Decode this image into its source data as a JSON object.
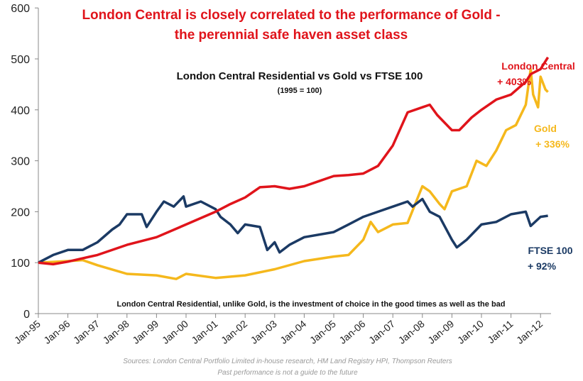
{
  "chart_data": {
    "type": "line",
    "title": "London Central is closely correlated to the performance of Gold -",
    "title_line2": "the perennial safe haven asset class",
    "subtitle": "London Central Residential vs Gold vs FTSE 100",
    "subtitle2": "(1995 = 100)",
    "annotation": "London Central Residential, unlike Gold, is the investment of choice in the good times as well as the bad",
    "source": "Sources: London Central Portfolio Limited in-house research, HM Land Registry HPI, Thompson Reuters",
    "disclaimer": "Past performance is not a guide to the future",
    "ylim": [
      0,
      600
    ],
    "yticks": [
      "0",
      "100",
      "200",
      "300",
      "400",
      "500",
      "600"
    ],
    "xticks": [
      "Jan-95",
      "Jan-96",
      "Jan-97",
      "Jan-98",
      "Jan-99",
      "Jan-00",
      "Jan-01",
      "Jan-02",
      "Jan-03",
      "Jan-04",
      "Jan-05",
      "Jan-06",
      "Jan-07",
      "Jan-08",
      "Jan-09",
      "Jan-10",
      "Jan-11",
      "Jan-12"
    ],
    "grid": false,
    "series": [
      {
        "name": "London Central",
        "label2": "+ 403%",
        "color": "#e0141b",
        "x": [
          "1995-01",
          "1995-07",
          "1996-01",
          "1997-01",
          "1998-01",
          "1999-01",
          "2000-01",
          "2001-01",
          "2001-07",
          "2002-01",
          "2002-07",
          "2003-01",
          "2003-07",
          "2004-01",
          "2004-07",
          "2005-01",
          "2005-07",
          "2006-01",
          "2006-07",
          "2007-01",
          "2007-07",
          "2008-01",
          "2008-04",
          "2008-07",
          "2009-01",
          "2009-04",
          "2009-09",
          "2010-01",
          "2010-07",
          "2011-01",
          "2011-07",
          "2011-09",
          "2012-01",
          "2012-04"
        ],
        "y": [
          100,
          97,
          102,
          115,
          135,
          150,
          175,
          200,
          215,
          228,
          248,
          250,
          245,
          250,
          260,
          270,
          272,
          275,
          290,
          330,
          395,
          405,
          410,
          390,
          360,
          360,
          385,
          400,
          420,
          430,
          455,
          470,
          480,
          503
        ]
      },
      {
        "name": "Gold",
        "label2": "+ 336%",
        "color": "#f5b81c",
        "x": [
          "1995-01",
          "1996-01",
          "1996-07",
          "1997-01",
          "1998-01",
          "1999-01",
          "1999-09",
          "2000-01",
          "2001-01",
          "2002-01",
          "2003-01",
          "2004-01",
          "2005-01",
          "2005-07",
          "2006-01",
          "2006-04",
          "2006-07",
          "2007-01",
          "2007-07",
          "2008-01",
          "2008-04",
          "2008-08",
          "2008-10",
          "2009-01",
          "2009-07",
          "2009-11",
          "2010-03",
          "2010-07",
          "2010-11",
          "2011-03",
          "2011-07",
          "2011-09",
          "2011-10",
          "2011-12",
          "2012-01",
          "2012-03",
          "2012-04"
        ],
        "y": [
          100,
          103,
          105,
          95,
          78,
          75,
          68,
          78,
          70,
          75,
          87,
          103,
          112,
          115,
          145,
          180,
          160,
          175,
          178,
          250,
          240,
          215,
          205,
          240,
          250,
          300,
          290,
          320,
          360,
          370,
          410,
          480,
          430,
          405,
          465,
          440,
          435
        ]
      },
      {
        "name": "FTSE 100",
        "label2": "+ 92%",
        "color": "#1b3a64",
        "x": [
          "1995-01",
          "1995-07",
          "1996-01",
          "1996-07",
          "1997-01",
          "1997-07",
          "1997-10",
          "1998-01",
          "1998-07",
          "1998-09",
          "1999-01",
          "1999-04",
          "1999-08",
          "1999-12",
          "2000-01",
          "2000-07",
          "2001-01",
          "2001-03",
          "2001-07",
          "2001-10",
          "2002-01",
          "2002-07",
          "2002-10",
          "2003-01",
          "2003-03",
          "2003-07",
          "2004-01",
          "2005-01",
          "2005-07",
          "2006-01",
          "2006-07",
          "2007-01",
          "2007-07",
          "2007-09",
          "2008-01",
          "2008-04",
          "2008-08",
          "2009-01",
          "2009-03",
          "2009-07",
          "2010-01",
          "2010-07",
          "2011-01",
          "2011-07",
          "2011-09",
          "2012-01",
          "2012-04"
        ],
        "y": [
          100,
          115,
          125,
          125,
          140,
          165,
          175,
          195,
          195,
          170,
          200,
          220,
          210,
          230,
          210,
          220,
          205,
          190,
          175,
          158,
          175,
          170,
          125,
          140,
          120,
          135,
          150,
          160,
          175,
          190,
          200,
          210,
          220,
          210,
          225,
          200,
          190,
          145,
          130,
          145,
          175,
          180,
          195,
          200,
          172,
          190,
          192
        ]
      }
    ]
  }
}
